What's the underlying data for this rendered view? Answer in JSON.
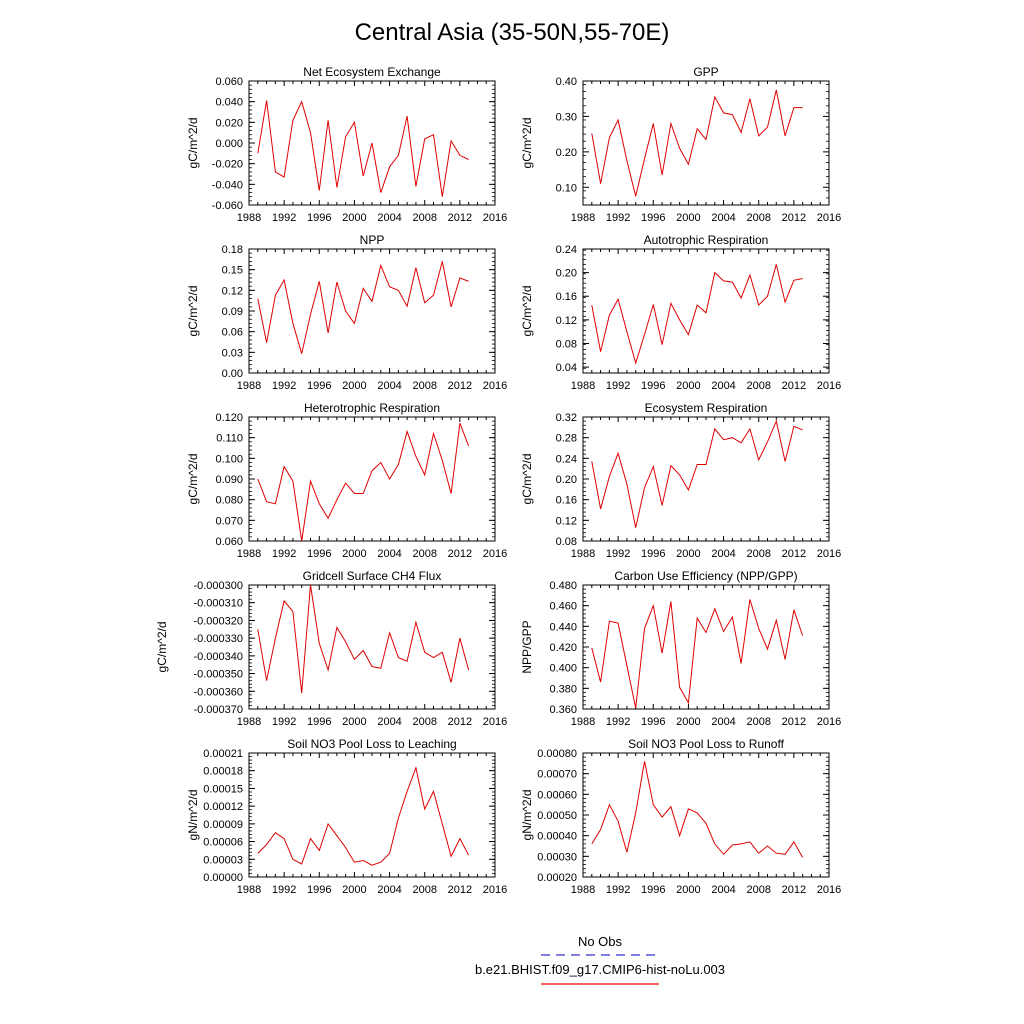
{
  "title": "Central Asia (35-50N,55-70E)",
  "legend": {
    "obs_label": "No Obs",
    "obs_color": "#3333cc",
    "model_label": "b.e21.BHIST.f09_g17.CMIP6-hist-noLu.003",
    "model_color": "#e00000"
  },
  "chart_data": [
    {
      "type": "line",
      "title": "Net Ecosystem Exchange",
      "ylabel": "gC/m^2/d",
      "xlim": [
        1988,
        2016
      ],
      "ylim": [
        -0.06,
        0.06
      ],
      "xticks": [
        "1988",
        "1992",
        "1996",
        "2000",
        "2004",
        "2008",
        "2012",
        "2016"
      ],
      "yticks": [
        "0.060",
        "0.040",
        "0.020",
        "0.000",
        "-0.020",
        "-0.040",
        "-0.060"
      ],
      "x": [
        1989,
        1990,
        1991,
        1992,
        1993,
        1994,
        1995,
        1996,
        1997,
        1998,
        1999,
        2000,
        2001,
        2002,
        2003,
        2004,
        2005,
        2006,
        2007,
        2008,
        2009,
        2010,
        2011,
        2012,
        2013
      ],
      "series": [
        {
          "name": "b.e21.BHIST.f09_g17.CMIP6-hist-noLu.003",
          "values": [
            -0.01,
            0.041,
            -0.028,
            -0.033,
            0.022,
            0.04,
            0.01,
            -0.046,
            0.022,
            -0.043,
            0.006,
            0.02,
            -0.032,
            0.0,
            -0.048,
            -0.023,
            -0.012,
            0.026,
            -0.042,
            0.004,
            0.008,
            -0.052,
            0.002,
            -0.012,
            -0.016
          ]
        }
      ]
    },
    {
      "type": "line",
      "title": "GPP",
      "ylabel": "gC/m^2/d",
      "xlim": [
        1988,
        2016
      ],
      "ylim": [
        0.05,
        0.4
      ],
      "xticks": [
        "1988",
        "1992",
        "1996",
        "2000",
        "2004",
        "2008",
        "2012",
        "2016"
      ],
      "yticks": [
        "0.40",
        "0.30",
        "0.20",
        "0.10"
      ],
      "x": [
        1989,
        1990,
        1991,
        1992,
        1993,
        1994,
        1995,
        1996,
        1997,
        1998,
        1999,
        2000,
        2001,
        2002,
        2003,
        2004,
        2005,
        2006,
        2007,
        2008,
        2009,
        2010,
        2011,
        2012,
        2013
      ],
      "series": [
        {
          "name": "b.e21.BHIST.f09_g17.CMIP6-hist-noLu.003",
          "values": [
            0.252,
            0.11,
            0.24,
            0.29,
            0.175,
            0.075,
            0.18,
            0.28,
            0.135,
            0.28,
            0.21,
            0.165,
            0.265,
            0.235,
            0.355,
            0.31,
            0.305,
            0.255,
            0.35,
            0.245,
            0.27,
            0.375,
            0.245,
            0.325,
            0.325
          ]
        }
      ]
    },
    {
      "type": "line",
      "title": "NPP",
      "ylabel": "gC/m^2/d",
      "xlim": [
        1988,
        2016
      ],
      "ylim": [
        0.0,
        0.18
      ],
      "xticks": [
        "1988",
        "1992",
        "1996",
        "2000",
        "2004",
        "2008",
        "2012",
        "2016"
      ],
      "yticks": [
        "0.18",
        "0.15",
        "0.12",
        "0.09",
        "0.06",
        "0.03",
        "0.00"
      ],
      "x": [
        1989,
        1990,
        1991,
        1992,
        1993,
        1994,
        1995,
        1996,
        1997,
        1998,
        1999,
        2000,
        2001,
        2002,
        2003,
        2004,
        2005,
        2006,
        2007,
        2008,
        2009,
        2010,
        2011,
        2012,
        2013
      ],
      "series": [
        {
          "name": "b.e21.BHIST.f09_g17.CMIP6-hist-noLu.003",
          "values": [
            0.108,
            0.044,
            0.113,
            0.135,
            0.072,
            0.028,
            0.085,
            0.133,
            0.058,
            0.132,
            0.09,
            0.072,
            0.123,
            0.104,
            0.156,
            0.125,
            0.12,
            0.097,
            0.153,
            0.102,
            0.113,
            0.162,
            0.096,
            0.138,
            0.133
          ]
        }
      ]
    },
    {
      "type": "line",
      "title": "Autotrophic Respiration",
      "ylabel": "gC/m^2/d",
      "xlim": [
        1988,
        2016
      ],
      "ylim": [
        0.03,
        0.24
      ],
      "xticks": [
        "1988",
        "1992",
        "1996",
        "2000",
        "2004",
        "2008",
        "2012",
        "2016"
      ],
      "yticks": [
        "0.24",
        "0.20",
        "0.16",
        "0.12",
        "0.08",
        "0.04"
      ],
      "x": [
        1989,
        1990,
        1991,
        1992,
        1993,
        1994,
        1995,
        1996,
        1997,
        1998,
        1999,
        2000,
        2001,
        2002,
        2003,
        2004,
        2005,
        2006,
        2007,
        2008,
        2009,
        2010,
        2011,
        2012,
        2013
      ],
      "series": [
        {
          "name": "b.e21.BHIST.f09_g17.CMIP6-hist-noLu.003",
          "values": [
            0.145,
            0.066,
            0.128,
            0.155,
            0.1,
            0.047,
            0.095,
            0.146,
            0.078,
            0.148,
            0.12,
            0.095,
            0.145,
            0.132,
            0.2,
            0.186,
            0.184,
            0.157,
            0.196,
            0.145,
            0.16,
            0.214,
            0.15,
            0.187,
            0.19
          ]
        }
      ]
    },
    {
      "type": "line",
      "title": "Heterotrophic Respiration",
      "ylabel": "gC/m^2/d",
      "xlim": [
        1988,
        2016
      ],
      "ylim": [
        0.06,
        0.12
      ],
      "xticks": [
        "1988",
        "1992",
        "1996",
        "2000",
        "2004",
        "2008",
        "2012",
        "2016"
      ],
      "yticks": [
        "0.120",
        "0.110",
        "0.100",
        "0.090",
        "0.080",
        "0.070",
        "0.060"
      ],
      "x": [
        1989,
        1990,
        1991,
        1992,
        1993,
        1994,
        1995,
        1996,
        1997,
        1998,
        1999,
        2000,
        2001,
        2002,
        2003,
        2004,
        2005,
        2006,
        2007,
        2008,
        2009,
        2010,
        2011,
        2012,
        2013
      ],
      "series": [
        {
          "name": "b.e21.BHIST.f09_g17.CMIP6-hist-noLu.003",
          "values": [
            0.09,
            0.079,
            0.078,
            0.096,
            0.089,
            0.06,
            0.089,
            0.078,
            0.071,
            0.08,
            0.088,
            0.083,
            0.083,
            0.094,
            0.098,
            0.09,
            0.097,
            0.113,
            0.101,
            0.092,
            0.112,
            0.099,
            0.083,
            0.117,
            0.106
          ]
        }
      ]
    },
    {
      "type": "line",
      "title": "Ecosystem Respiration",
      "ylabel": "gC/m^2/d",
      "xlim": [
        1988,
        2016
      ],
      "ylim": [
        0.08,
        0.32
      ],
      "xticks": [
        "1988",
        "1992",
        "1996",
        "2000",
        "2004",
        "2008",
        "2012",
        "2016"
      ],
      "yticks": [
        "0.32",
        "0.28",
        "0.24",
        "0.20",
        "0.16",
        "0.12",
        "0.08"
      ],
      "x": [
        1989,
        1990,
        1991,
        1992,
        1993,
        1994,
        1995,
        1996,
        1997,
        1998,
        1999,
        2000,
        2001,
        2002,
        2003,
        2004,
        2005,
        2006,
        2007,
        2008,
        2009,
        2010,
        2011,
        2012,
        2013
      ],
      "series": [
        {
          "name": "b.e21.BHIST.f09_g17.CMIP6-hist-noLu.003",
          "values": [
            0.234,
            0.142,
            0.205,
            0.25,
            0.19,
            0.106,
            0.183,
            0.224,
            0.149,
            0.226,
            0.208,
            0.179,
            0.228,
            0.228,
            0.297,
            0.276,
            0.28,
            0.27,
            0.297,
            0.237,
            0.272,
            0.312,
            0.234,
            0.302,
            0.295
          ]
        }
      ]
    },
    {
      "type": "line",
      "title": "Gridcell Surface CH4 Flux",
      "ylabel": "gC/m^2/d",
      "xlim": [
        1988,
        2016
      ],
      "ylim": [
        -0.00037,
        -0.0003
      ],
      "xticks": [
        "1988",
        "1992",
        "1996",
        "2000",
        "2004",
        "2008",
        "2012",
        "2016"
      ],
      "yticks": [
        "-0.000300",
        "-0.000310",
        "-0.000320",
        "-0.000330",
        "-0.000340",
        "-0.000350",
        "-0.000360",
        "-0.000370"
      ],
      "x": [
        1989,
        1990,
        1991,
        1992,
        1993,
        1994,
        1995,
        1996,
        1997,
        1998,
        1999,
        2000,
        2001,
        2002,
        2003,
        2004,
        2005,
        2006,
        2007,
        2008,
        2009,
        2010,
        2011,
        2012,
        2013
      ],
      "series": [
        {
          "name": "b.e21.BHIST.f09_g17.CMIP6-hist-noLu.003",
          "values": [
            -0.000325,
            -0.000354,
            -0.00033,
            -0.000309,
            -0.000315,
            -0.000361,
            -0.0003,
            -0.000333,
            -0.000348,
            -0.000324,
            -0.000332,
            -0.000342,
            -0.000337,
            -0.000346,
            -0.000347,
            -0.000327,
            -0.000341,
            -0.000343,
            -0.000321,
            -0.000338,
            -0.000341,
            -0.000338,
            -0.000355,
            -0.00033,
            -0.000348
          ]
        }
      ]
    },
    {
      "type": "line",
      "title": "Carbon Use Efficiency (NPP/GPP)",
      "ylabel": "NPP/GPP",
      "xlim": [
        1988,
        2016
      ],
      "ylim": [
        0.36,
        0.48
      ],
      "xticks": [
        "1988",
        "1992",
        "1996",
        "2000",
        "2004",
        "2008",
        "2012",
        "2016"
      ],
      "yticks": [
        "0.480",
        "0.460",
        "0.440",
        "0.420",
        "0.400",
        "0.380",
        "0.360"
      ],
      "x": [
        1989,
        1990,
        1991,
        1992,
        1993,
        1994,
        1995,
        1996,
        1997,
        1998,
        1999,
        2000,
        2001,
        2002,
        2003,
        2004,
        2005,
        2006,
        2007,
        2008,
        2009,
        2010,
        2011,
        2012,
        2013
      ],
      "series": [
        {
          "name": "b.e21.BHIST.f09_g17.CMIP6-hist-noLu.003",
          "values": [
            0.419,
            0.386,
            0.445,
            0.443,
            0.402,
            0.361,
            0.438,
            0.46,
            0.414,
            0.464,
            0.381,
            0.366,
            0.448,
            0.434,
            0.457,
            0.435,
            0.449,
            0.404,
            0.466,
            0.438,
            0.418,
            0.446,
            0.408,
            0.456,
            0.431
          ]
        }
      ]
    },
    {
      "type": "line",
      "title": "Soil NO3 Pool Loss to Leaching",
      "ylabel": "gN/m^2/d",
      "xlim": [
        1988,
        2016
      ],
      "ylim": [
        0.0,
        0.00021
      ],
      "xticks": [
        "1988",
        "1992",
        "1996",
        "2000",
        "2004",
        "2008",
        "2012",
        "2016"
      ],
      "yticks": [
        "0.00021",
        "0.00018",
        "0.00015",
        "0.00012",
        "0.00009",
        "0.00006",
        "0.00003",
        "0.00000"
      ],
      "x": [
        1989,
        1990,
        1991,
        1992,
        1993,
        1994,
        1995,
        1996,
        1997,
        1998,
        1999,
        2000,
        2001,
        2002,
        2003,
        2004,
        2005,
        2006,
        2007,
        2008,
        2009,
        2010,
        2011,
        2012,
        2013
      ],
      "series": [
        {
          "name": "b.e21.BHIST.f09_g17.CMIP6-hist-noLu.003",
          "values": [
            4e-05,
            5.5e-05,
            7.5e-05,
            6.5e-05,
            3e-05,
            2.2e-05,
            6.5e-05,
            4.5e-05,
            9e-05,
            7e-05,
            5e-05,
            2.5e-05,
            2.8e-05,
            2e-05,
            2.5e-05,
            4e-05,
            0.0001,
            0.000145,
            0.000185,
            0.000115,
            0.000145,
            9e-05,
            3.5e-05,
            6.5e-05,
            3.7e-05
          ]
        }
      ]
    },
    {
      "type": "line",
      "title": "Soil NO3 Pool Loss to Runoff",
      "ylabel": "gN/m^2/d",
      "xlim": [
        1988,
        2016
      ],
      "ylim": [
        0.0002,
        0.0008
      ],
      "xticks": [
        "1988",
        "1992",
        "1996",
        "2000",
        "2004",
        "2008",
        "2012",
        "2016"
      ],
      "yticks": [
        "0.00080",
        "0.00070",
        "0.00060",
        "0.00050",
        "0.00040",
        "0.00030",
        "0.00020"
      ],
      "x": [
        1989,
        1990,
        1991,
        1992,
        1993,
        1994,
        1995,
        1996,
        1997,
        1998,
        1999,
        2000,
        2001,
        2002,
        2003,
        2004,
        2005,
        2006,
        2007,
        2008,
        2009,
        2010,
        2011,
        2012,
        2013
      ],
      "series": [
        {
          "name": "b.e21.BHIST.f09_g17.CMIP6-hist-noLu.003",
          "values": [
            0.00036,
            0.00043,
            0.00055,
            0.00047,
            0.00032,
            0.00051,
            0.00076,
            0.00055,
            0.00049,
            0.00054,
            0.0004,
            0.00053,
            0.00051,
            0.00046,
            0.00036,
            0.00031,
            0.000355,
            0.00036,
            0.00037,
            0.000315,
            0.00035,
            0.000315,
            0.00031,
            0.00037,
            0.000295
          ]
        }
      ]
    }
  ]
}
